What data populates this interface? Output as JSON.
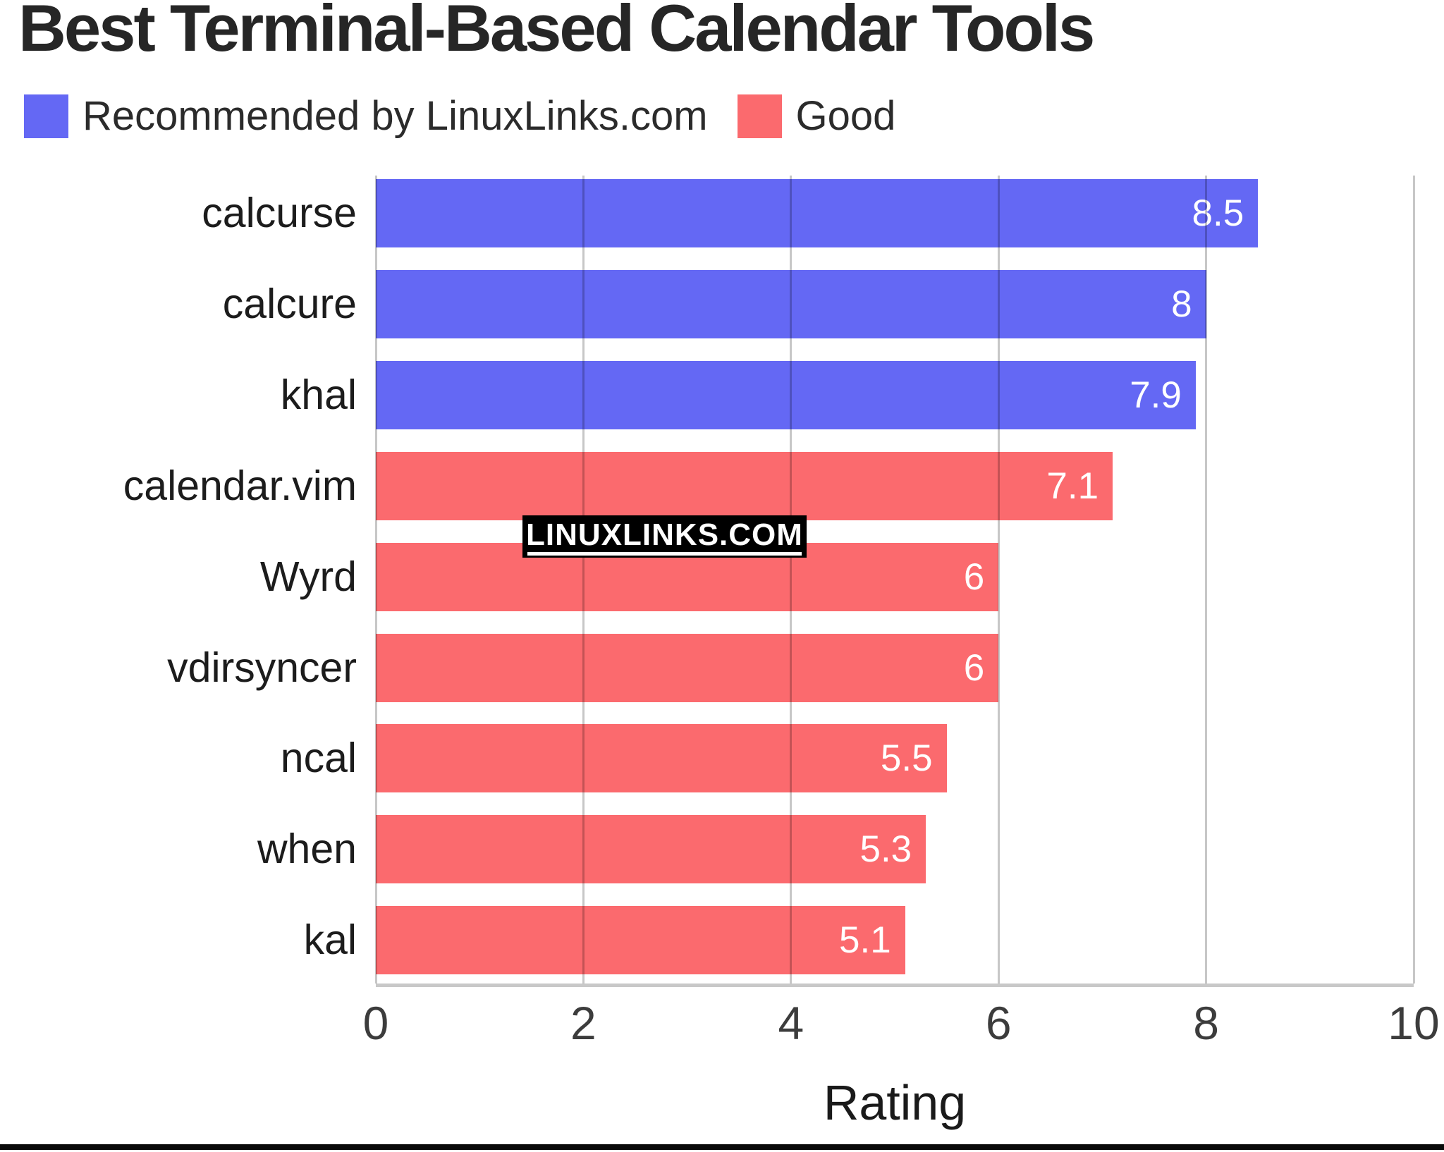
{
  "page": {
    "title": "Best Terminal-Based Calendar Tools",
    "watermark": "LINUXLINKS.COM"
  },
  "colors": {
    "recommended_blue": "#6468f4",
    "good_red": "#fb6a6e",
    "axis_line": "#c8c8c8",
    "watermark_bg": "#000000",
    "watermark_text": "#ffffff",
    "bottom_rule": "#0a0a0a"
  },
  "chart_data": {
    "type": "bar",
    "orientation": "horizontal",
    "title": "Best Terminal-Based Calendar Tools",
    "xlabel": "Rating",
    "xlim": [
      0,
      10
    ],
    "xticks": [
      "0",
      "2",
      "4",
      "6",
      "8",
      "10"
    ],
    "xtick_values": [
      0,
      2,
      4,
      6,
      8,
      10
    ],
    "grid": true,
    "legend_position": "top-left",
    "categories": [
      "calcurse",
      "calcure",
      "khal",
      "calendar.vim",
      "Wyrd",
      "vdirsyncer",
      "ncal",
      "when",
      "kal"
    ],
    "values": [
      8.5,
      8,
      7.9,
      7.1,
      6,
      6,
      5.5,
      5.3,
      5.1
    ],
    "value_labels": [
      "8.5",
      "8",
      "7.9",
      "7.1",
      "6",
      "6",
      "5.5",
      "5.3",
      "5.1"
    ],
    "bar_series": [
      "recommended",
      "recommended",
      "recommended",
      "good",
      "good",
      "good",
      "good",
      "good",
      "good"
    ],
    "series": [
      {
        "id": "recommended",
        "name": "Recommended by LinuxLinks.com",
        "color": "#6468f4"
      },
      {
        "id": "good",
        "name": "Good",
        "color": "#fb6a6e"
      }
    ]
  }
}
